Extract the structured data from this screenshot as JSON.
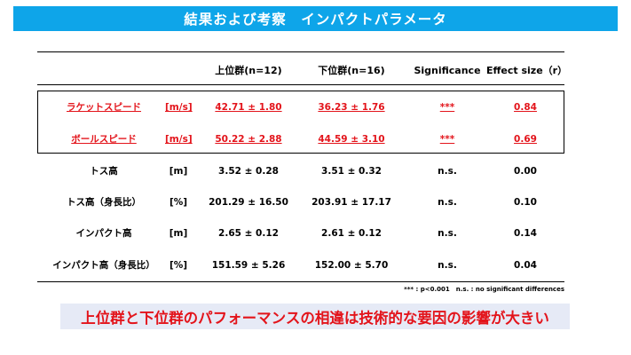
{
  "title": "結果および考察　インパクトパラメータ",
  "table": {
    "headers": {
      "upper": "上位群(n=12)",
      "lower": "下位群(n=16)",
      "significance": "Significance",
      "effect_size": "Effect size（r）"
    },
    "rows": [
      {
        "name": "ラケットスピード",
        "unit": "[m/s]",
        "upper": "42.71 ± 1.80",
        "lower": "36.23 ± 1.76",
        "sig": "***",
        "es": "0.84",
        "highlight": true
      },
      {
        "name": "ボールスピード",
        "unit": "[m/s]",
        "upper": "50.22 ± 2.88",
        "lower": "44.59 ± 3.10",
        "sig": "***",
        "es": "0.69",
        "highlight": true
      },
      {
        "name": "トス高",
        "unit": "[m]",
        "upper": "3.52 ± 0.28",
        "lower": "3.51 ± 0.32",
        "sig": "n.s.",
        "es": "0.00",
        "highlight": false
      },
      {
        "name": "トス高（身長比）",
        "unit": "[%]",
        "upper": "201.29 ± 16.50",
        "lower": "203.91 ± 17.17",
        "sig": "n.s.",
        "es": "0.10",
        "highlight": false
      },
      {
        "name": "インパクト高",
        "unit": "[m]",
        "upper": "2.65 ± 0.12",
        "lower": "2.61 ± 0.12",
        "sig": "n.s.",
        "es": "0.14",
        "highlight": false
      },
      {
        "name": "インパクト高（身長比）",
        "unit": "[%]",
        "upper": "151.59 ± 5.26",
        "lower": "152.00 ± 5.70",
        "sig": "n.s.",
        "es": "0.04",
        "highlight": false
      }
    ]
  },
  "footnote": "*** : p<0.001　n.s. : no significant differences",
  "conclusion": "上位群と下位群のパフォーマンスの相違は技術的な要因の影響が大きい",
  "colors": {
    "title_bg": "#0ea5e9",
    "accent_red": "#e3141b",
    "conclusion_bg": "#e6eaf6"
  }
}
